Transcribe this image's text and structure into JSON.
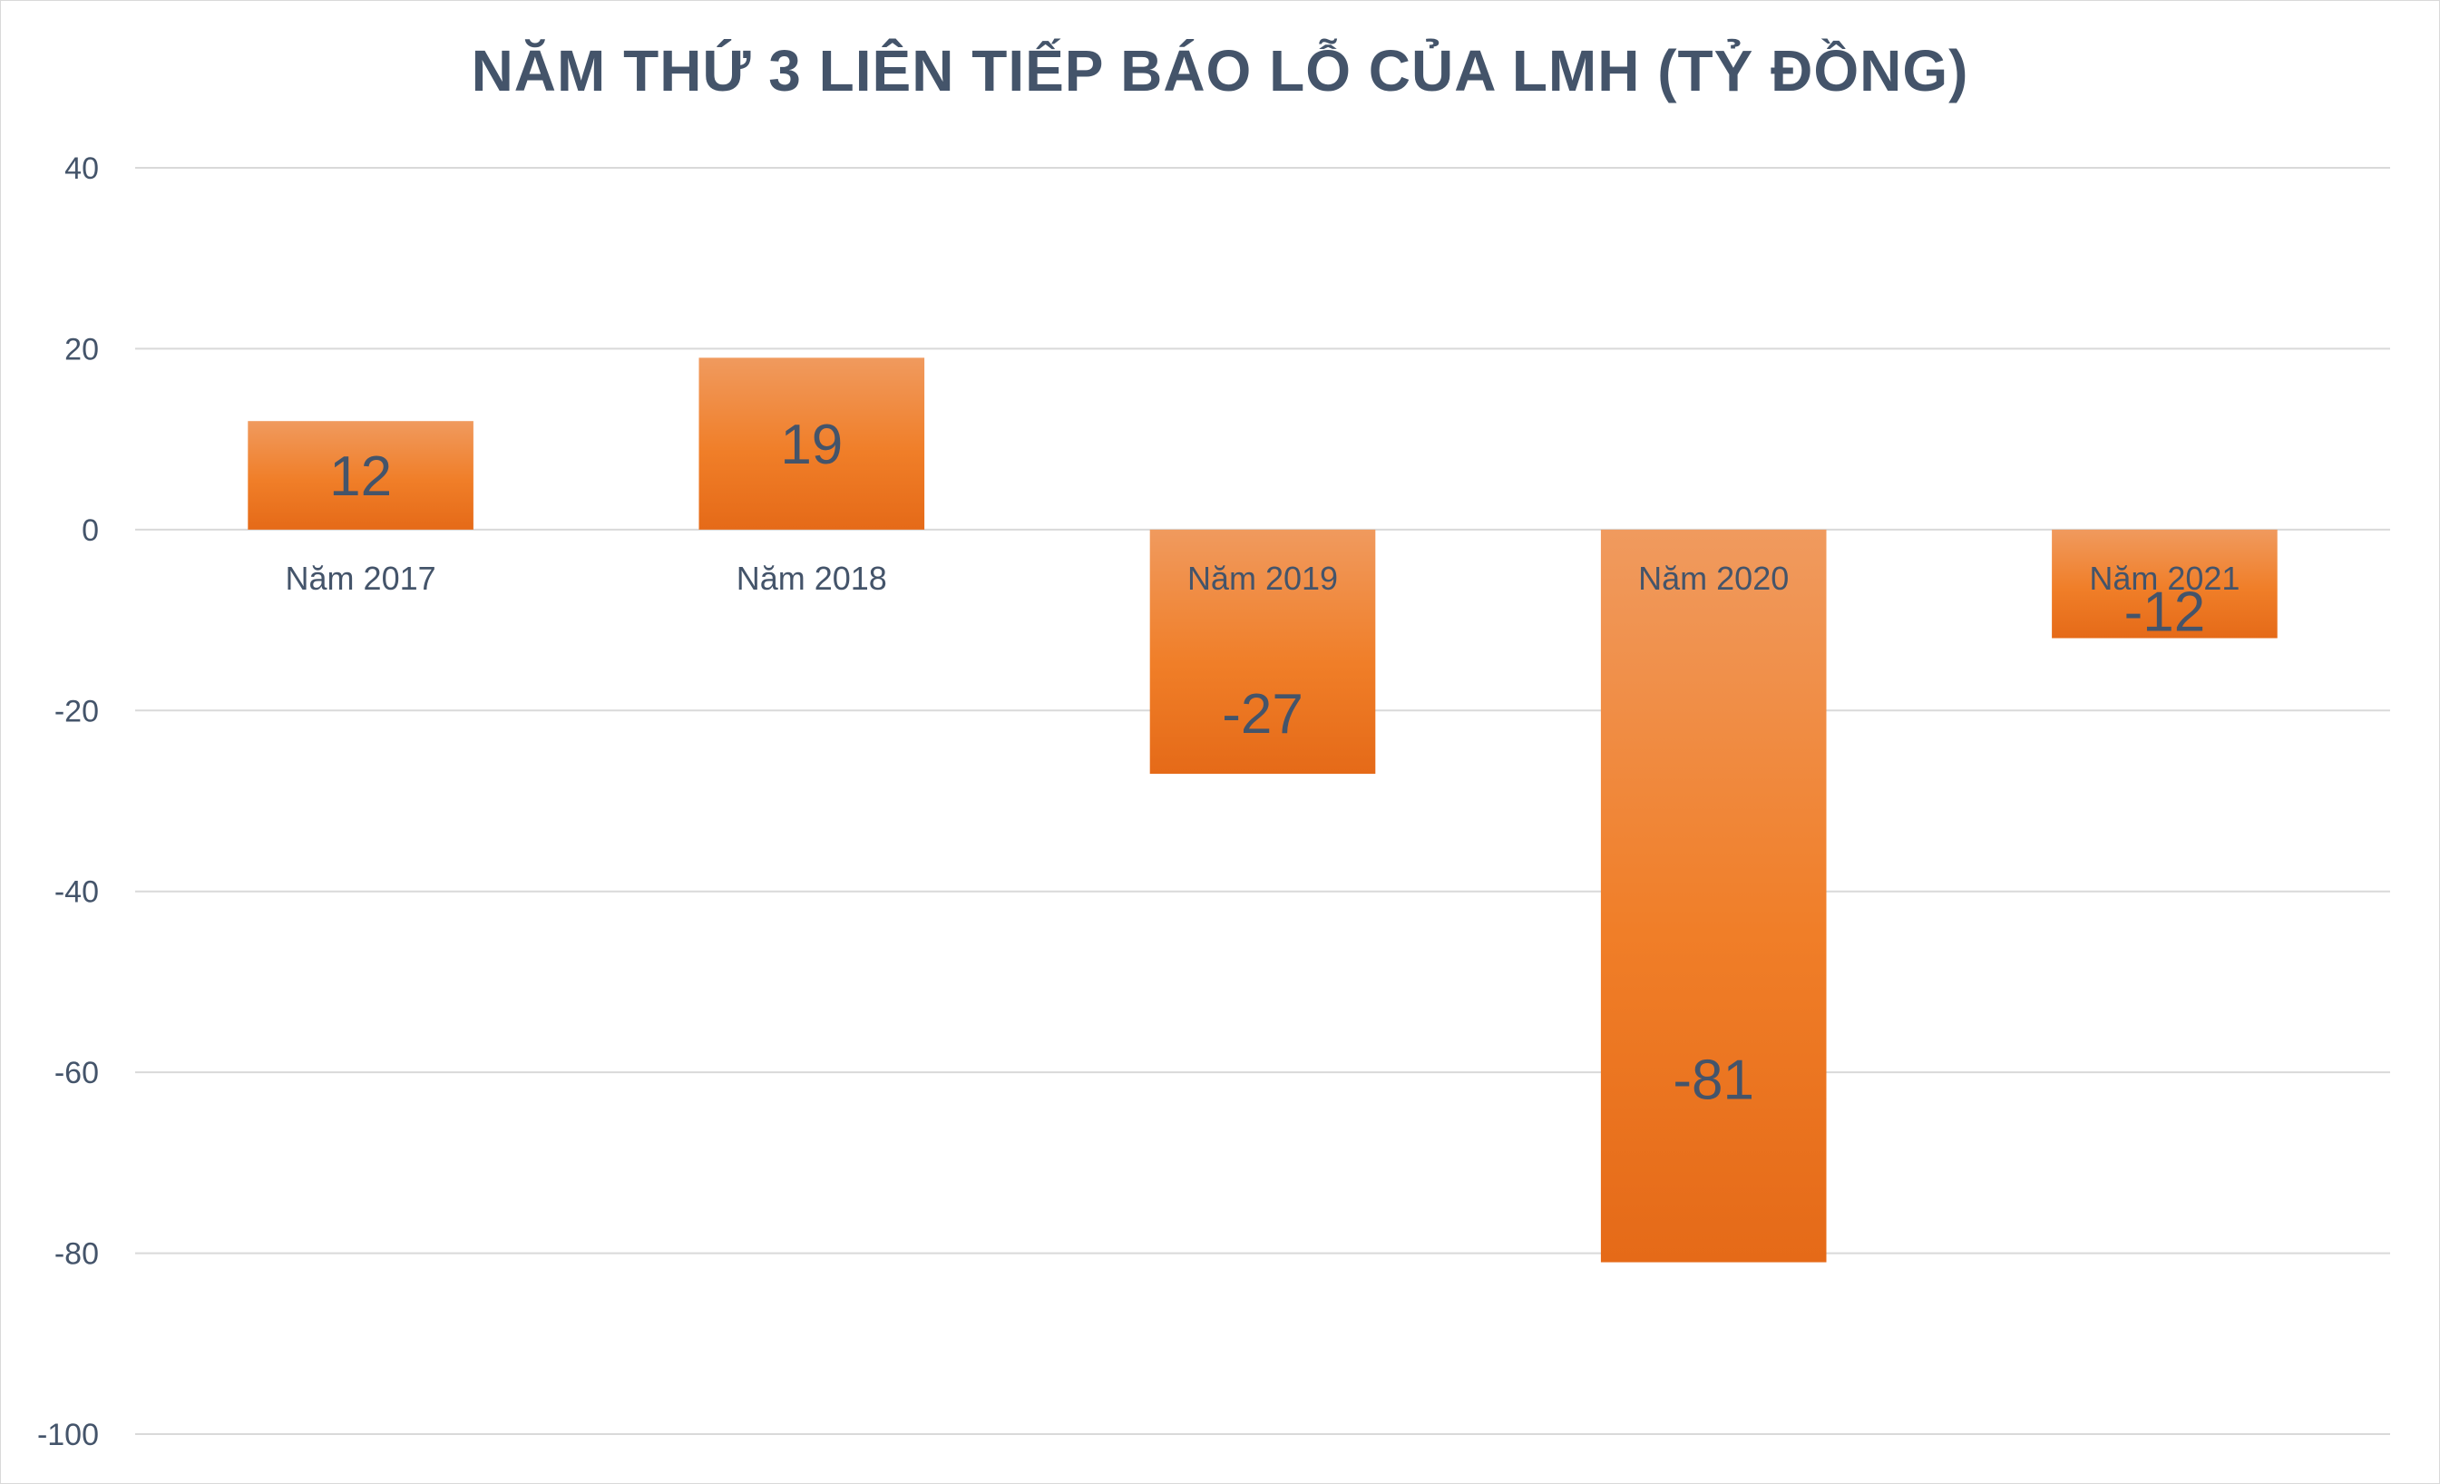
{
  "chart_data": {
    "type": "bar",
    "title": "NĂM THỨ 3 LIÊN TIẾP BÁO LỖ CỦA LMH (TỶ ĐỒNG)",
    "categories": [
      "Năm 2017",
      "Năm 2018",
      "Năm 2019",
      "Năm 2020",
      "Năm 2021"
    ],
    "values": [
      12,
      19,
      -27,
      -81,
      -12
    ],
    "data_labels": [
      "12",
      "19",
      "-27",
      "-81",
      "-12"
    ],
    "ylim": [
      -100,
      40
    ],
    "yticks": [
      40,
      20,
      0,
      -20,
      -40,
      -60,
      -80,
      -100
    ],
    "ytick_labels": [
      "40",
      "20",
      "0",
      "-20",
      "-40",
      "-60",
      "-80",
      "-100"
    ],
    "grid": true,
    "legend": "none",
    "colors": {
      "bar_top": "#f09a5e",
      "bar_mid": "#f07e28",
      "bar_bottom": "#e56a18",
      "text": "#44546a",
      "grid": "#d9d9d9"
    }
  }
}
